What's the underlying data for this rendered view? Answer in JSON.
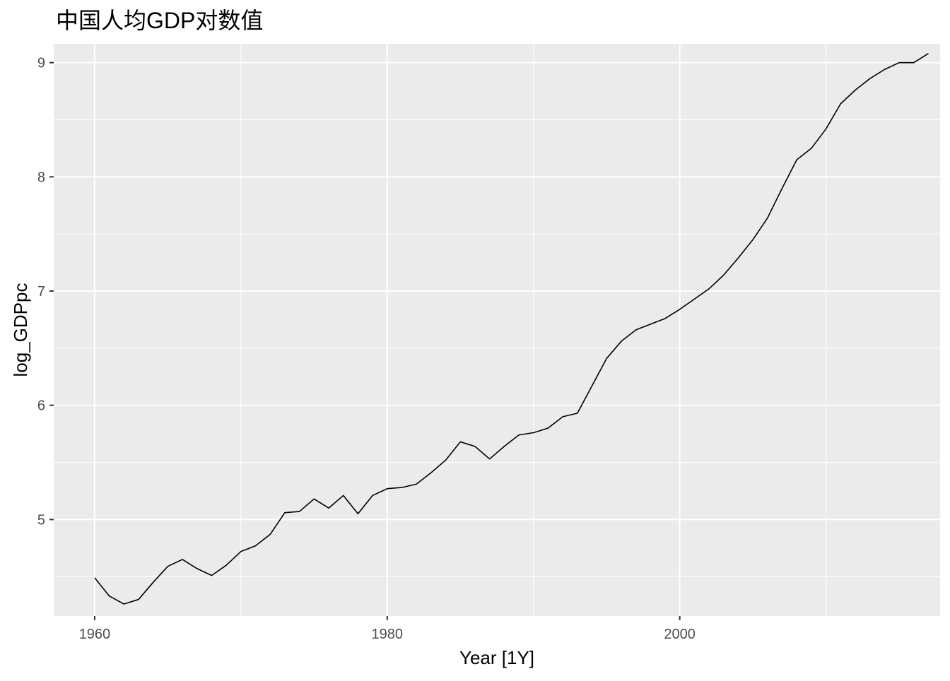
{
  "chart_data": {
    "type": "line",
    "title": "中国人均GDP对数值",
    "xlabel": "Year [1Y]",
    "ylabel": "log_GDPpc",
    "xlim": [
      1957.2,
      2017.8
    ],
    "ylim": [
      4.155,
      9.165
    ],
    "x_ticks": [
      1960,
      1980,
      2000
    ],
    "y_ticks": [
      5,
      6,
      7,
      8,
      9
    ],
    "grid": true,
    "panel_background": "#ebebeb",
    "grid_color": "#ffffff",
    "line_color": "#000000",
    "series": [
      {
        "x": [
          1960,
          1961,
          1962,
          1963,
          1964,
          1965,
          1966,
          1967,
          1968,
          1969,
          1970,
          1971,
          1972,
          1973,
          1974,
          1975,
          1976,
          1977,
          1978,
          1979,
          1980,
          1981,
          1982,
          1983,
          1984,
          1985,
          1986,
          1987,
          1988,
          1989,
          1990,
          1991,
          1992,
          1993,
          1994,
          1995,
          1996,
          1997,
          1998,
          1999,
          2000,
          2001,
          2002,
          2003,
          2004,
          2005,
          2006,
          2007,
          2008,
          2009,
          2010,
          2011,
          2012,
          2013,
          2014,
          2015,
          2016,
          2017
        ],
        "values": [
          4.49,
          4.33,
          4.26,
          4.3,
          4.45,
          4.59,
          4.65,
          4.57,
          4.51,
          4.6,
          4.72,
          4.77,
          4.87,
          5.06,
          5.07,
          5.18,
          5.1,
          5.21,
          5.05,
          5.21,
          5.27,
          5.28,
          5.31,
          5.41,
          5.52,
          5.68,
          5.64,
          5.53,
          5.64,
          5.74,
          5.76,
          5.8,
          5.9,
          5.93,
          6.17,
          6.41,
          6.56,
          6.66,
          6.71,
          6.76,
          6.84,
          6.93,
          7.02,
          7.14,
          7.29,
          7.45,
          7.64,
          7.9,
          8.15,
          8.25,
          8.42,
          8.64,
          8.76,
          8.86,
          8.94,
          9.0,
          9.0,
          9.08
        ]
      }
    ]
  }
}
